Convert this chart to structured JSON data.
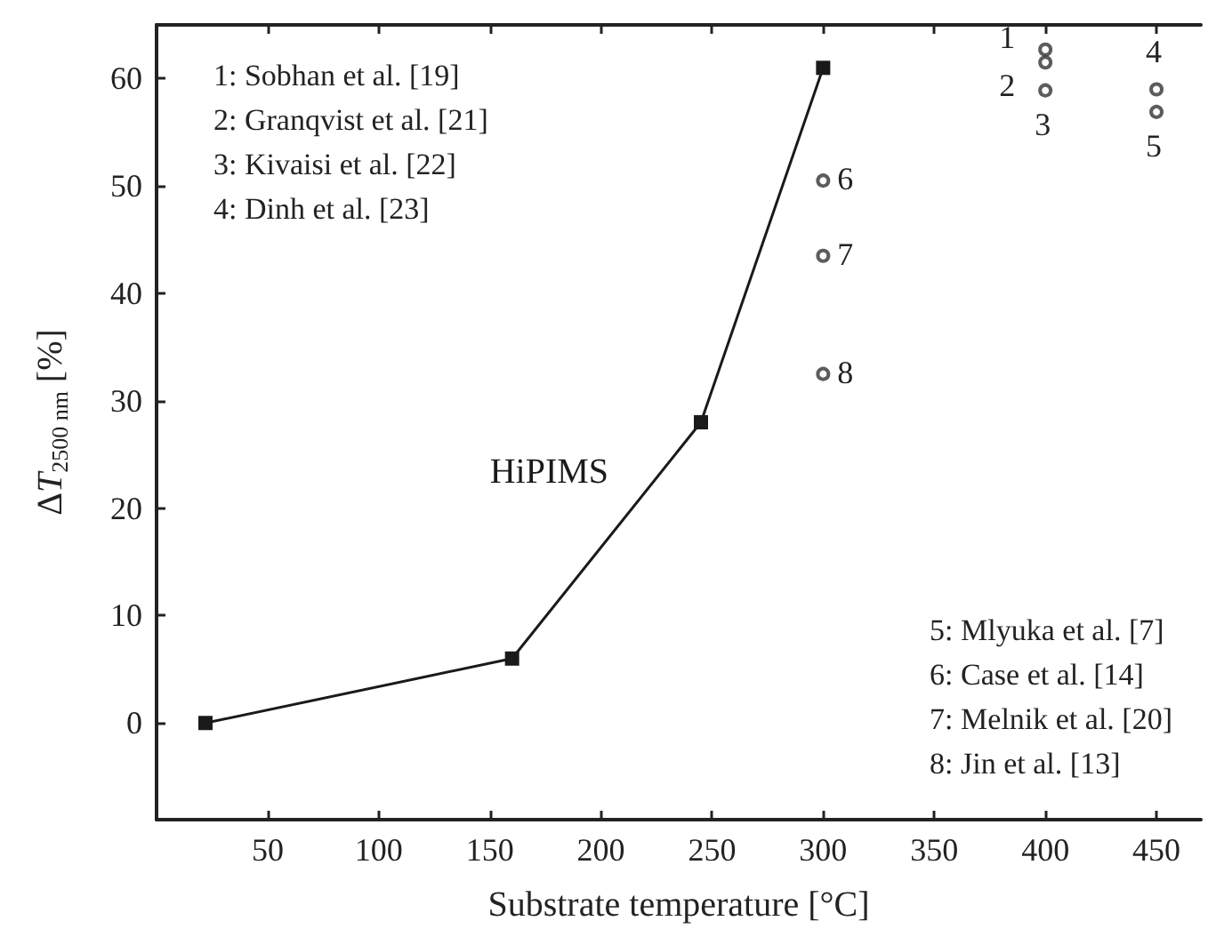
{
  "chart_data": {
    "type": "line",
    "xlabel": "Substrate temperature [°C]",
    "ylabel": "ΔT$_{2500 nm}$ [%]",
    "xlim": [
      0,
      470
    ],
    "xticks": [
      50,
      100,
      150,
      200,
      250,
      300,
      350,
      400,
      450
    ],
    "ylim": [
      -9,
      65
    ],
    "yticks": [
      0,
      10,
      20,
      30,
      40,
      50,
      60
    ],
    "legend": false,
    "series": [
      {
        "name": "HiPIMS",
        "color": "#1a1a1a",
        "marker": "square",
        "line_style": "solid",
        "x": [
          22,
          160,
          245,
          300
        ],
        "values": [
          0,
          6,
          28,
          61
        ]
      },
      {
        "type": "scatter",
        "color": "#333333",
        "marker": "circle",
        "x": [
          400,
          400,
          400,
          450,
          450,
          300,
          300,
          300
        ],
        "values": [
          62.7,
          61.5,
          58.9,
          59,
          56.9,
          50.5,
          43.5,
          32.5
        ]
      }
    ],
    "annotations": [
      {
        "text": "1",
        "x": 400,
        "y": 62.7
      },
      {
        "text": "2",
        "x": 400,
        "y": 61.5
      },
      {
        "text": "3",
        "x": 400,
        "y": 58.9
      },
      {
        "text": "4",
        "x": 450,
        "y": 59
      },
      {
        "text": "5",
        "x": 450,
        "y": 56.9
      },
      {
        "text": "6",
        "x": 300,
        "y": 50.5
      },
      {
        "text": "7",
        "x": 300,
        "y": 43.5
      },
      {
        "text": "8",
        "x": 300,
        "y": 32.5
      },
      "1: Sobhan et al. [19]\n2: Granqvist et al. [21]\n3: Kivaisi et al. [22]\n4: Dinh et al. [23]",
      "5: Mlyuka et al. [7]\n6: Case et al. [14]\n7: Melnik et al. [20]\n8: Jin et al. [13]"
    ]
  }
}
